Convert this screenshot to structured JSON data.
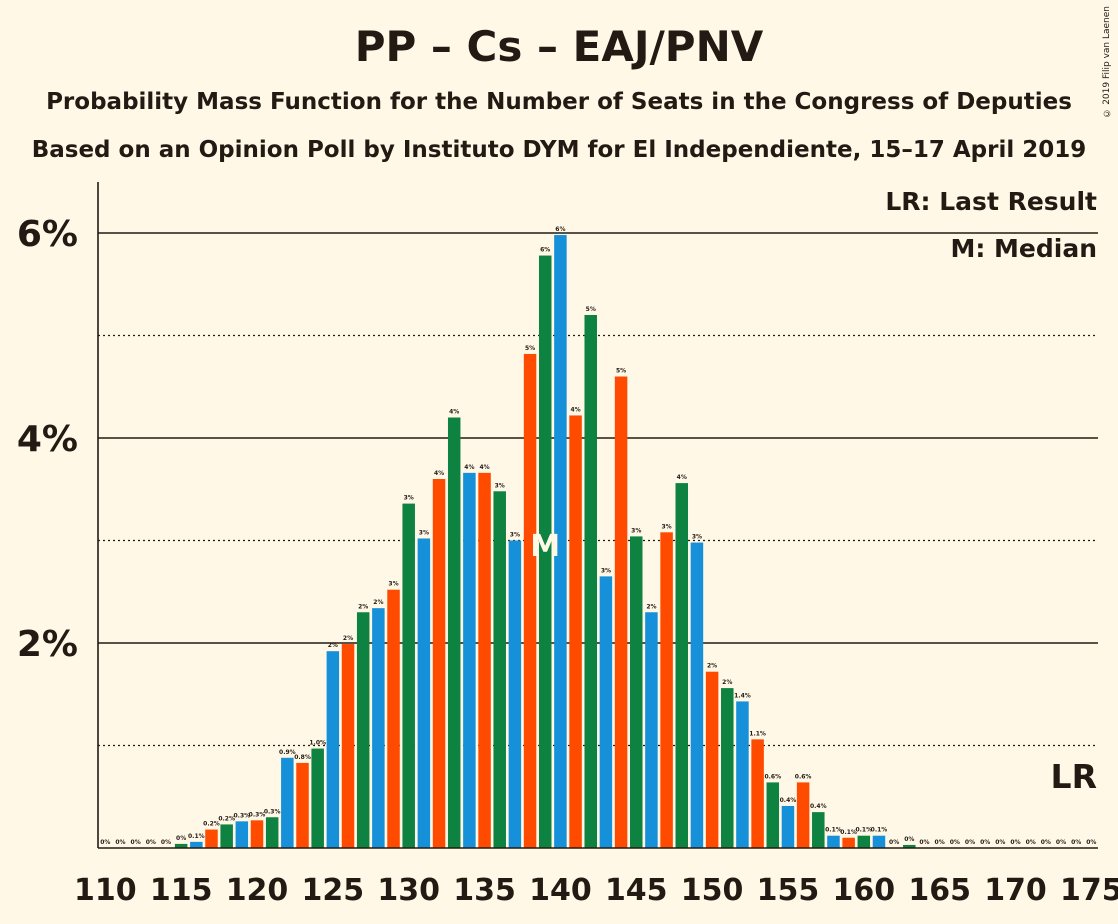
{
  "title": "PP – Cs – EAJ/PNV",
  "subtitle1": "Probability Mass Function for the Number of Seats in the Congress of Deputies",
  "subtitle2": "Based on an Opinion Poll by Instituto DYM for El Independiente, 15–17 April 2019",
  "copyright": "© 2019 Filip van Laenen",
  "legend": {
    "last_result": "LR: Last Result",
    "median": "M: Median"
  },
  "colors": {
    "background": "#fff8e7",
    "green": "#0e8240",
    "blue": "#1690d8",
    "orange": "#ff4b00",
    "text": "#231a13",
    "label_on_bar": "#fff8e7"
  },
  "chart_data": {
    "type": "bar",
    "x": [
      110,
      111,
      112,
      113,
      114,
      115,
      116,
      117,
      118,
      119,
      120,
      121,
      122,
      123,
      124,
      125,
      126,
      127,
      128,
      129,
      130,
      131,
      132,
      133,
      134,
      135,
      136,
      137,
      138,
      139,
      140,
      141,
      142,
      143,
      144,
      145,
      146,
      147,
      148,
      149,
      150,
      151,
      152,
      153,
      154,
      155,
      156,
      157,
      158,
      159,
      160,
      161,
      162,
      163,
      164,
      165,
      166,
      167,
      168,
      169,
      170,
      171,
      172,
      173,
      174,
      175
    ],
    "values": [
      0,
      0,
      0,
      0,
      0,
      0.04,
      0.06,
      0.18,
      0.23,
      0.26,
      0.27,
      0.3,
      0.88,
      0.83,
      0.97,
      1.92,
      1.99,
      2.3,
      2.34,
      2.52,
      3.36,
      3.02,
      3.6,
      4.2,
      3.66,
      3.66,
      3.48,
      3.0,
      4.82,
      5.78,
      5.98,
      4.22,
      5.2,
      2.65,
      4.6,
      3.04,
      2.3,
      3.08,
      3.56,
      2.98,
      1.72,
      1.56,
      1.43,
      1.06,
      0.64,
      0.41,
      0.64,
      0.35,
      0.12,
      0.1,
      0.12,
      0.12,
      0,
      0.03,
      0,
      0,
      0,
      0,
      0,
      0,
      0,
      0,
      0,
      0,
      0,
      0
    ],
    "labels": [
      "0%",
      "0%",
      "0%",
      "0%",
      "0%",
      "0%",
      "0.1%",
      "0.2%",
      "0.2%",
      "0.3%",
      "0.3%",
      "0.3%",
      "0.9%",
      "0.8%",
      "1.0%",
      "2%",
      "2%",
      "2%",
      "2%",
      "3%",
      "3%",
      "3%",
      "4%",
      "4%",
      "4%",
      "4%",
      "3%",
      "3%",
      "5%",
      "6%",
      "6%",
      "4%",
      "5%",
      "3%",
      "5%",
      "3%",
      "2%",
      "3%",
      "4%",
      "3%",
      "2%",
      "2%",
      "1.4%",
      "1.1%",
      "0.6%",
      "0.4%",
      "0.6%",
      "0.4%",
      "0.1%",
      "0.1%",
      "0.1%",
      "0.1%",
      "0%",
      "0%",
      "0%",
      "0%",
      "0%",
      "0%",
      "0%",
      "0%",
      "0%",
      "0%",
      "0%",
      "0%",
      "0%",
      "0%"
    ],
    "x_ticks": [
      "110",
      "115",
      "120",
      "125",
      "130",
      "135",
      "140",
      "145",
      "150",
      "155",
      "160",
      "165",
      "170",
      "175"
    ],
    "y_ticks": [
      "2%",
      "4%",
      "6%"
    ],
    "y_range": [
      0,
      6.5
    ],
    "median_seat": 139,
    "median_mark": "M",
    "last_result_mark": "LR",
    "grid": true
  }
}
